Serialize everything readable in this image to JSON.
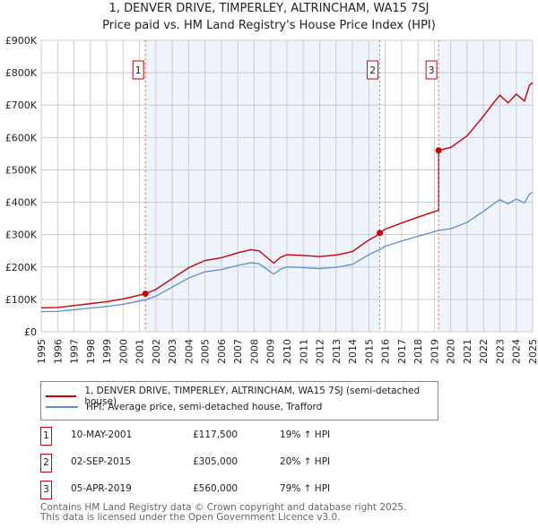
{
  "chart_data": {
    "type": "line",
    "title": "1, DENVER DRIVE, TIMPERLEY, ALTRINCHAM, WA15 7SJ",
    "subtitle": "Price paid vs. HM Land Registry's House Price Index (HPI)",
    "xlim": [
      1995,
      2025
    ],
    "ylim": [
      0,
      900000
    ],
    "yticks": [
      {
        "v": 0,
        "label": "£0"
      },
      {
        "v": 100000,
        "label": "£100K"
      },
      {
        "v": 200000,
        "label": "£200K"
      },
      {
        "v": 300000,
        "label": "£300K"
      },
      {
        "v": 400000,
        "label": "£400K"
      },
      {
        "v": 500000,
        "label": "£500K"
      },
      {
        "v": 600000,
        "label": "£600K"
      },
      {
        "v": 700000,
        "label": "£700K"
      },
      {
        "v": 800000,
        "label": "£800K"
      },
      {
        "v": 900000,
        "label": "£900K"
      }
    ],
    "xticks": [
      "1995",
      "1996",
      "1997",
      "1998",
      "1999",
      "2000",
      "2001",
      "2002",
      "2003",
      "2004",
      "2005",
      "2006",
      "2007",
      "2008",
      "2009",
      "2010",
      "2011",
      "2012",
      "2013",
      "2014",
      "2015",
      "2016",
      "2017",
      "2018",
      "2019",
      "2020",
      "2021",
      "2022",
      "2023",
      "2024",
      "2025"
    ],
    "grid": true,
    "colors": {
      "price": "#cc0000",
      "hpi": "#5b8fd4",
      "shade": "#eef3fc"
    },
    "hpi": {
      "name": "HPI: Average price, semi-detached house, Trafford",
      "x": [
        1995,
        1996,
        1997,
        1998,
        1999,
        2000,
        2001,
        2001.36,
        2002,
        2003,
        2004,
        2005,
        2006,
        2007,
        2007.8,
        2008.3,
        2008.8,
        2009.2,
        2009.6,
        2010,
        2011,
        2012,
        2013,
        2014,
        2015,
        2015.67,
        2016,
        2017,
        2018,
        2019,
        2019.26,
        2020,
        2021,
        2022,
        2022.7,
        2023,
        2023.5,
        2024,
        2024.5,
        2024.8,
        2025
      ],
      "y": [
        62000,
        63000,
        68000,
        73000,
        78000,
        85000,
        95000,
        98700,
        110000,
        138000,
        166000,
        185000,
        192000,
        205000,
        213000,
        210000,
        192000,
        178000,
        193000,
        200000,
        198000,
        195000,
        199000,
        208000,
        238000,
        254000,
        264000,
        280000,
        295000,
        309000,
        313000,
        318000,
        338000,
        372000,
        398000,
        408000,
        395000,
        410000,
        398000,
        425000,
        430000
      ]
    },
    "price": {
      "name": "1, DENVER DRIVE, TIMPERLEY, ALTRINCHAM, WA15 7SJ (semi-detached house)"
    },
    "sales": [
      {
        "id": "1",
        "x": 2001.36,
        "date": "10-MAY-2001",
        "price_value": 117500,
        "price": "£117,500",
        "hpi": "19% ↑ HPI",
        "ratio": 1.19
      },
      {
        "id": "2",
        "x": 2015.67,
        "date": "02-SEP-2015",
        "price_value": 305000,
        "price": "£305,000",
        "hpi": "20% ↑ HPI",
        "ratio": 1.2
      },
      {
        "id": "3",
        "x": 2019.26,
        "date": "05-APR-2019",
        "price_value": 560000,
        "price": "£560,000",
        "hpi": "79% ↑ HPI",
        "ratio": 1.79
      }
    ]
  },
  "footer": {
    "line1": "Contains HM Land Registry data © Crown copyright and database right 2025.",
    "line2": "This data is licensed under the Open Government Licence v3.0."
  }
}
